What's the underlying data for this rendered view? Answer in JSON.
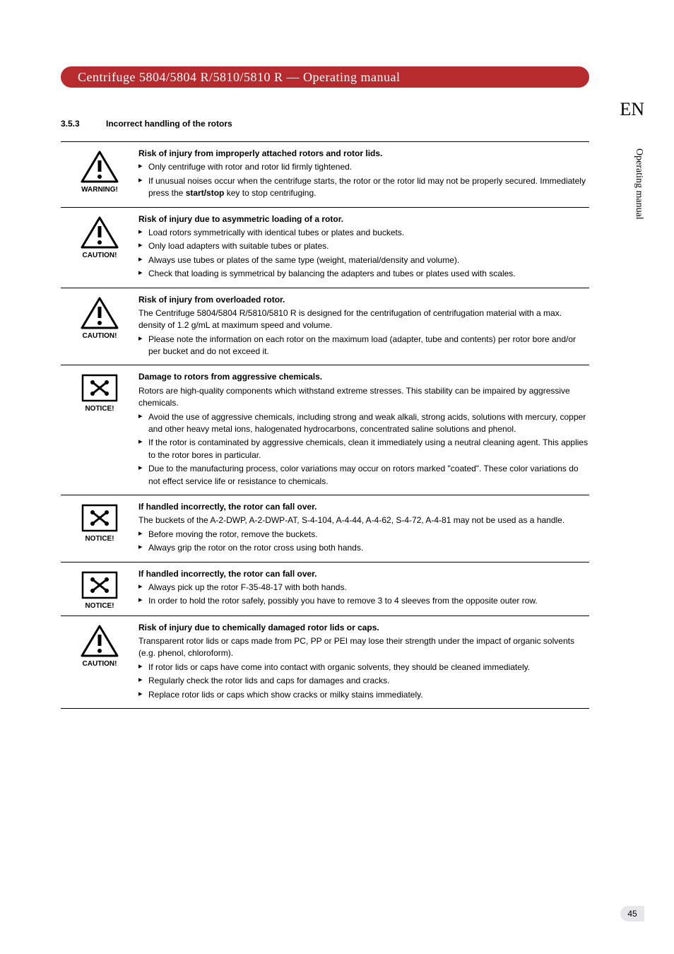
{
  "header": {
    "title": "Centrifuge 5804/5804 R/5810/5810 R  —  Operating manual",
    "bg_color": "#b72b2e",
    "text_color": "#ffffff"
  },
  "lang": "EN",
  "side_label": "Operating manual",
  "section": {
    "number": "3.5.3",
    "title": "Incorrect handling of the rotors"
  },
  "page_number": "45",
  "blocks": [
    {
      "icon": "warning-triangle",
      "label": "WARNING!",
      "title": "Risk of injury from improperly attached rotors and rotor lids.",
      "desc": "",
      "items": [
        "Only centrifuge with rotor and rotor lid firmly tightened.",
        "If unusual noises occur when the centrifuge starts, the rotor or the rotor lid may not be properly secured. Immediately press the <strong>start/stop</strong> key to stop centrifuging."
      ]
    },
    {
      "icon": "warning-triangle",
      "label": "CAUTION!",
      "title": "Risk of injury due to asymmetric loading of a rotor.",
      "desc": "",
      "items": [
        "Load rotors symmetrically with identical tubes or plates and buckets.",
        "Only load adapters with suitable tubes or plates.",
        "Always use tubes or plates of the same type (weight, material/density and volume).",
        "Check that loading is symmetrical by balancing the adapters and tubes or plates used with scales."
      ]
    },
    {
      "icon": "warning-triangle",
      "label": "CAUTION!",
      "title": "Risk of injury from overloaded rotor.",
      "desc": "The Centrifuge 5804/5804 R/5810/5810 R is designed for the centrifugation of centrifugation material with a max. density of 1.2 g/mL at maximum speed and volume.",
      "items": [
        "Please note the information on each rotor on the maximum load (adapter, tube and contents) per rotor bore and/or per bucket and do not exceed it."
      ]
    },
    {
      "icon": "notice-box",
      "label": "NOTICE!",
      "title": "Damage to rotors from aggressive chemicals.",
      "desc": "Rotors are high-quality components which withstand extreme stresses. This stability can be impaired by aggressive chemicals.",
      "items": [
        "Avoid the use of aggressive chemicals, including strong and weak alkali, strong acids, solutions with mercury, copper and other heavy metal ions, halogenated hydrocarbons, concentrated saline solutions and phenol.",
        "If the rotor is contaminated by aggressive chemicals, clean it immediately using a neutral cleaning agent. This applies to the rotor bores in particular.",
        "Due to the manufacturing process, color variations may occur on rotors marked \"coated\". These color variations do not effect service life or resistance to chemicals."
      ]
    },
    {
      "icon": "notice-box",
      "label": "NOTICE!",
      "title": "If handled incorrectly, the rotor can fall over.",
      "desc": "The buckets of the A-2-DWP, A-2-DWP-AT, S-4-104, A-4-44, A-4-62, S-4-72, A-4-81 may not be used as a handle.",
      "items": [
        "Before moving the rotor, remove the buckets.",
        "Always grip the rotor on the rotor cross using both hands."
      ]
    },
    {
      "icon": "notice-box",
      "label": "NOTICE!",
      "title": "If handled incorrectly, the rotor can fall over.",
      "desc": "",
      "items": [
        "Always pick up the rotor F-35-48-17 with both hands.",
        "In order to hold the rotor safely, possibly you have to remove 3 to 4 sleeves from the opposite outer row."
      ]
    },
    {
      "icon": "warning-triangle",
      "label": "CAUTION!",
      "title": "Risk of injury due to chemically damaged rotor lids or caps.",
      "desc": "Transparent rotor lids or caps made from PC, PP or PEI may lose their strength under the impact of organic solvents (e.g. phenol, chloroform).",
      "items": [
        "If rotor lids or caps have come into contact with organic solvents, they should be cleaned immediately.",
        "Regularly check the rotor lids and caps for damages and cracks.",
        "Replace rotor lids or caps which show cracks or milky stains immediately."
      ]
    }
  ]
}
